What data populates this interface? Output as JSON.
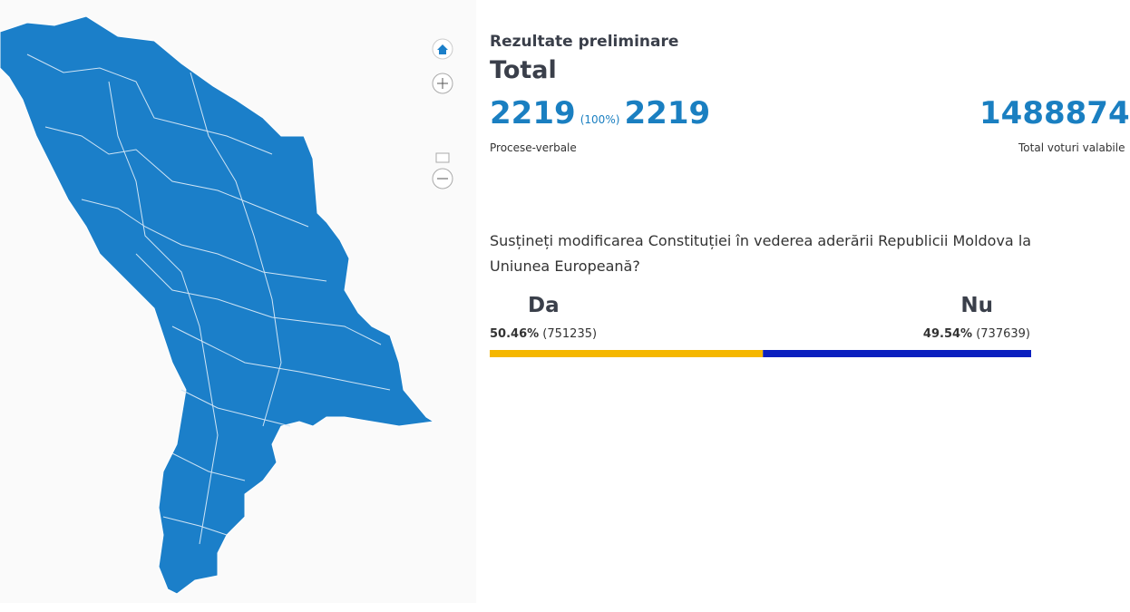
{
  "header": {
    "subtitle": "Rezultate preliminare",
    "title": "Total"
  },
  "stats": {
    "reports_processed": "2219",
    "reports_percent": "(100%)",
    "reports_total": "2219",
    "reports_label": "Procese-verbale",
    "valid_votes": "1488874",
    "valid_votes_label": "Total voturi valabile"
  },
  "question": "Susțineți modificarea Constituției în vederea aderării Republicii Moldova la Uniunea Europeană?",
  "options": [
    {
      "name": "Da",
      "percent": 50.46,
      "percent_label": "50.46%",
      "votes": "(751235)",
      "color": "#f5b700"
    },
    {
      "name": "Nu",
      "percent": 49.54,
      "percent_label": "49.54%",
      "votes": "(737639)",
      "color": "#0a1fbf"
    }
  ]
}
